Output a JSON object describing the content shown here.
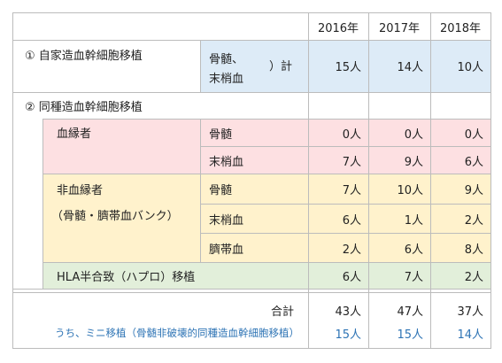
{
  "header": {
    "years": [
      "2016年",
      "2017年",
      "2018年"
    ]
  },
  "autologous": {
    "label": "① 自家造血幹細胞移植",
    "source_line1": "骨髄、",
    "bracket": "）計",
    "source_line2": "末梢血",
    "values": [
      "15人",
      "14人",
      "10人"
    ]
  },
  "allogeneic": {
    "label": "② 同種造血幹細胞移植"
  },
  "related": {
    "label": "血縁者",
    "rows": [
      {
        "source": "骨髄",
        "values": [
          "0人",
          "0人",
          "0人"
        ]
      },
      {
        "source": "末梢血",
        "values": [
          "7人",
          "9人",
          "6人"
        ]
      }
    ]
  },
  "unrelated": {
    "label_line1": "非血縁者",
    "label_line2": "（骨髄・臍帯血バンク）",
    "rows": [
      {
        "source": "骨髄",
        "values": [
          "7人",
          "10人",
          "9人"
        ]
      },
      {
        "source": "末梢血",
        "values": [
          "6人",
          "1人",
          "2人"
        ]
      },
      {
        "source": "臍帯血",
        "values": [
          "2人",
          "6人",
          "8人"
        ]
      }
    ]
  },
  "haplo": {
    "label": "HLA半合致（ハプロ）移植",
    "values": [
      "6人",
      "7人",
      "2人"
    ]
  },
  "total": {
    "label": "合計",
    "values": [
      "43人",
      "47人",
      "37人"
    ]
  },
  "mini": {
    "label": "うち、ミニ移植（骨髄非破壊的同種造血幹細胞移植）",
    "values": [
      "15人",
      "15人",
      "14人"
    ]
  },
  "colors": {
    "pink": "#fde0e2",
    "yellow": "#fff2cc",
    "green": "#e2efda",
    "light_blue": "#ddebf7",
    "blue_text": "#2e74b5",
    "border": "#bcbcbc"
  }
}
